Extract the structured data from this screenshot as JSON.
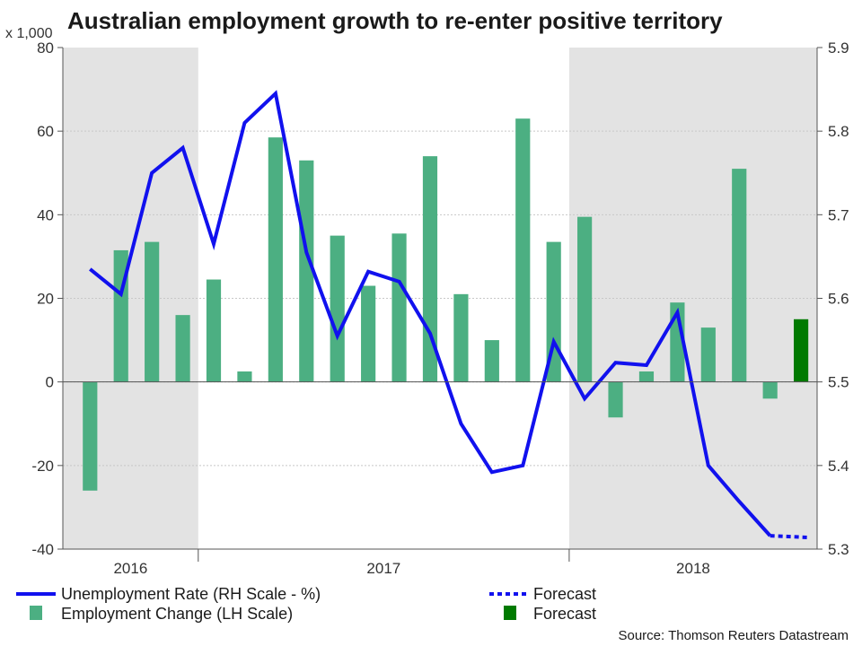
{
  "chart_data": {
    "type": "bar+line",
    "title": "Australian employment growth to re-enter positive territory",
    "left_axis": {
      "unit_label": "x 1,000",
      "min": -40,
      "max": 80,
      "ticks": [
        -40,
        -20,
        0,
        20,
        40,
        60,
        80
      ]
    },
    "right_axis": {
      "min": 5.3,
      "max": 5.9,
      "ticks": [
        "5.3",
        "5.4",
        "5.5",
        "5.6",
        "5.7",
        "5.8",
        "5.9"
      ]
    },
    "year_labels": [
      {
        "label": "2016",
        "start_index": 0,
        "end_index": 3
      },
      {
        "label": "2017",
        "start_index": 4,
        "end_index": 15
      },
      {
        "label": "2018",
        "start_index": 16,
        "end_index": 23
      }
    ],
    "shaded_years": [
      "2016",
      "2018"
    ],
    "employment_change": {
      "name": "Employment Change (LH Scale)",
      "color": "#4caf82",
      "values": [
        -26,
        31.5,
        33.5,
        16,
        24.5,
        2.5,
        58.5,
        53,
        35,
        23,
        35.5,
        54,
        21,
        10,
        63,
        33.5,
        39.5,
        -8.5,
        2.5,
        19,
        13,
        51,
        -4,
        null
      ]
    },
    "employment_forecast": {
      "name": "Forecast",
      "color": "#007a00",
      "index": 23,
      "value": 15
    },
    "unemployment_rate": {
      "name": "Unemployment Rate (RH Scale - %)",
      "color": "#1111ee",
      "values": [
        5.635,
        5.605,
        5.75,
        5.78,
        5.665,
        5.81,
        5.845,
        5.655,
        5.555,
        5.632,
        5.62,
        5.558,
        5.45,
        5.392,
        5.4,
        5.548,
        5.48,
        5.523,
        5.52,
        5.583,
        5.4,
        5.357,
        5.316,
        null
      ]
    },
    "unemployment_forecast": {
      "name": "Forecast",
      "color": "#1111ee",
      "from_index": 22,
      "to_index": 23,
      "values": [
        5.316,
        5.314
      ]
    }
  },
  "source": "Source: Thomson Reuters Datastream"
}
